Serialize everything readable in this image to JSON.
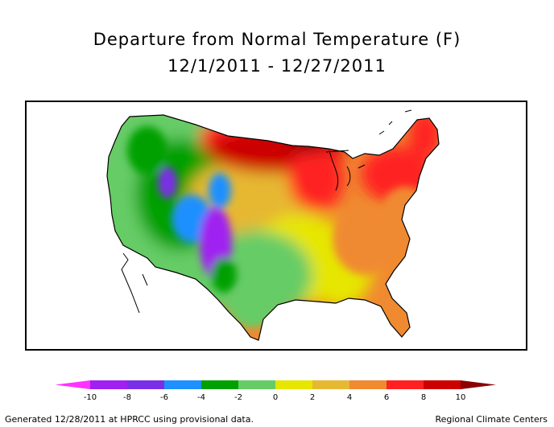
{
  "title": {
    "line1": "Departure from Normal Temperature (F)",
    "line2": "12/1/2011 - 12/27/2011"
  },
  "legend": {
    "tick_labels": [
      "-10",
      "-8",
      "-6",
      "-4",
      "-2",
      "0",
      "2",
      "4",
      "6",
      "8",
      "10"
    ],
    "bins": [
      {
        "range": "< -10",
        "color": "#ff33ff"
      },
      {
        "range": "-10 to -8",
        "color": "#a020f0"
      },
      {
        "range": "-8 to -6",
        "color": "#7b2ee6"
      },
      {
        "range": "-6 to -4",
        "color": "#1e90ff"
      },
      {
        "range": "-4 to -2",
        "color": "#00a000"
      },
      {
        "range": "-2 to 0",
        "color": "#66cc66"
      },
      {
        "range": "0 to 2",
        "color": "#e6e600"
      },
      {
        "range": "2 to 4",
        "color": "#e6b833"
      },
      {
        "range": "4 to 6",
        "color": "#f08a30"
      },
      {
        "range": "6 to 8",
        "color": "#ff2020"
      },
      {
        "range": "8 to 10",
        "color": "#cc0000"
      },
      {
        "range": "> 10",
        "color": "#8b0000"
      }
    ]
  },
  "map": {
    "region": "Contiguous United States",
    "regional_anomalies": [
      {
        "region": "northern-plains-upper-midwest",
        "color": "#cc0000"
      },
      {
        "region": "northeast-ohio-valley",
        "color": "#ff2020"
      },
      {
        "region": "southeast-mid-atlantic",
        "color": "#f08a30"
      },
      {
        "region": "central-plains",
        "color": "#e6b833"
      },
      {
        "region": "gulf-coast-lower-mississippi",
        "color": "#e6e600"
      },
      {
        "region": "texas-west-coast",
        "color": "#66cc66"
      },
      {
        "region": "great-basin-rockies",
        "color": "#00a000"
      },
      {
        "region": "four-corners-new-mexico",
        "color": "#7b2ee6"
      }
    ]
  },
  "footer": {
    "left": "Generated 12/28/2011 at HPRCC using provisional data.",
    "right": "Regional Climate Centers"
  }
}
